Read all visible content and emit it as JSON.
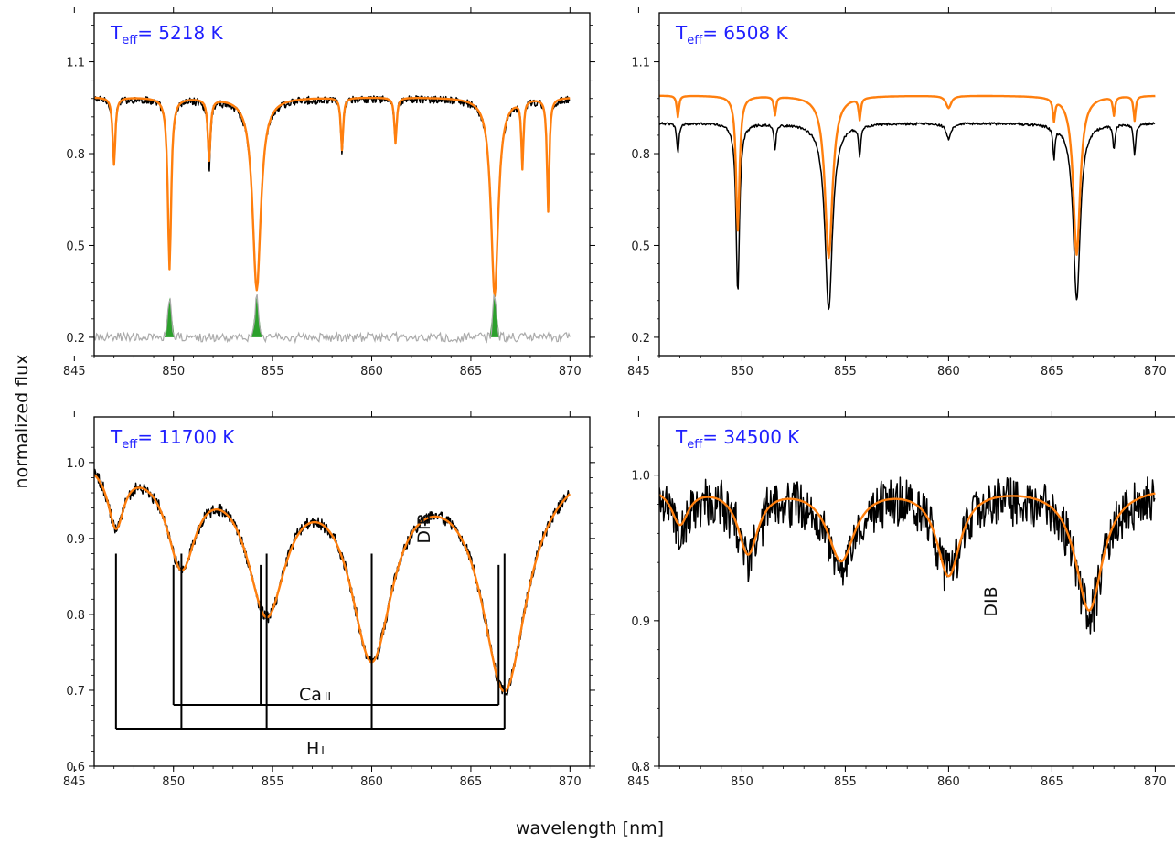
{
  "figure": {
    "xlabel": "wavelength [nm]",
    "ylabel": "normalized flux"
  },
  "colors": {
    "observed": "#000000",
    "model": "#ff7f0e",
    "residual": "#aaaaaa",
    "residual_fill": "#2ca02c",
    "teff_text": "#1f1fff"
  },
  "chart_data": [
    {
      "type": "line",
      "teff_label": "T",
      "teff_sub": "eff",
      "teff_value": "= 5218 K",
      "xlim": [
        846,
        871
      ],
      "ylim": [
        0.14,
        1.26
      ],
      "y_scale": "custom-ticks",
      "xticks": [
        845,
        850,
        855,
        860,
        865,
        870
      ],
      "yticks": [
        0.2,
        0.5,
        0.8,
        1.1
      ],
      "ytick_labels": [
        "0.2",
        "0.5",
        "0.8",
        "1.1"
      ],
      "series": [
        {
          "role": "observed",
          "continuum": 0.98,
          "noise": 0.012,
          "lines": [
            [
              847.0,
              0.2,
              0.08
            ],
            [
              849.8,
              0.55,
              0.1
            ],
            [
              851.8,
              0.22,
              0.08
            ],
            [
              854.2,
              0.62,
              0.25
            ],
            [
              858.5,
              0.18,
              0.07
            ],
            [
              861.2,
              0.15,
              0.07
            ],
            [
              866.2,
              0.64,
              0.22
            ],
            [
              867.6,
              0.22,
              0.06
            ],
            [
              868.9,
              0.36,
              0.07
            ]
          ]
        },
        {
          "role": "model",
          "continuum": 0.985,
          "lines": [
            [
              847.0,
              0.22,
              0.08
            ],
            [
              849.8,
              0.56,
              0.1
            ],
            [
              851.8,
              0.2,
              0.08
            ],
            [
              854.2,
              0.63,
              0.25
            ],
            [
              858.5,
              0.17,
              0.07
            ],
            [
              861.2,
              0.15,
              0.07
            ],
            [
              866.2,
              0.65,
              0.22
            ],
            [
              867.6,
              0.22,
              0.06
            ],
            [
              868.9,
              0.37,
              0.07
            ]
          ]
        },
        {
          "role": "residual",
          "level": 0.2,
          "noise": 0.015,
          "spikes": [
            [
              849.8,
              0.33
            ],
            [
              854.2,
              0.33
            ],
            [
              866.2,
              0.34
            ]
          ]
        }
      ],
      "grid": false
    },
    {
      "type": "line",
      "teff_label": "T",
      "teff_sub": "eff",
      "teff_value": "= 6508 K",
      "xlim": [
        846,
        871
      ],
      "ylim": [
        0.14,
        1.26
      ],
      "xticks": [
        845,
        850,
        855,
        860,
        865,
        870
      ],
      "yticks": [
        0.2,
        0.5,
        0.8,
        1.1
      ],
      "ytick_labels": [
        "0.2",
        "0.5",
        "0.8",
        "1.1"
      ],
      "series": [
        {
          "role": "observed",
          "continuum": 0.9,
          "noise": 0.004,
          "lines": [
            [
              846.9,
              0.1,
              0.06
            ],
            [
              849.8,
              0.55,
              0.1
            ],
            [
              851.6,
              0.08,
              0.06
            ],
            [
              854.2,
              0.61,
              0.22
            ],
            [
              855.7,
              0.1,
              0.06
            ],
            [
              860.0,
              0.05,
              0.15
            ],
            [
              865.1,
              0.1,
              0.06
            ],
            [
              866.2,
              0.58,
              0.2
            ],
            [
              868.0,
              0.08,
              0.06
            ],
            [
              869.0,
              0.1,
              0.06
            ]
          ]
        },
        {
          "role": "model",
          "continuum": 0.99,
          "lines": [
            [
              846.9,
              0.07,
              0.06
            ],
            [
              849.8,
              0.44,
              0.1
            ],
            [
              851.6,
              0.06,
              0.06
            ],
            [
              854.2,
              0.53,
              0.22
            ],
            [
              855.7,
              0.07,
              0.06
            ],
            [
              860.0,
              0.04,
              0.15
            ],
            [
              865.1,
              0.07,
              0.06
            ],
            [
              866.2,
              0.52,
              0.2
            ],
            [
              868.0,
              0.06,
              0.06
            ],
            [
              869.0,
              0.08,
              0.06
            ]
          ]
        }
      ],
      "grid": false
    },
    {
      "type": "line",
      "teff_label": "T",
      "teff_sub": "eff",
      "teff_value": "= 11700 K",
      "xlim": [
        846,
        871
      ],
      "ylim": [
        0.6,
        1.06
      ],
      "xticks": [
        845,
        850,
        855,
        860,
        865,
        870
      ],
      "yticks": [
        0.6,
        0.7,
        0.8,
        0.9,
        1.0
      ],
      "ytick_labels": [
        "0.6",
        "0.7",
        "0.8",
        "0.9",
        "1.0"
      ],
      "series": [
        {
          "role": "observed",
          "continuum": 1.01,
          "noise": 0.008,
          "lines": [
            [
              847.1,
              0.08,
              0.5
            ],
            [
              850.4,
              0.13,
              0.9
            ],
            [
              854.7,
              0.19,
              1.2
            ],
            [
              860.0,
              0.25,
              1.3
            ],
            [
              866.7,
              0.3,
              1.4
            ]
          ]
        },
        {
          "role": "model",
          "continuum": 1.01,
          "lines": [
            [
              847.1,
              0.08,
              0.5
            ],
            [
              850.4,
              0.13,
              0.9
            ],
            [
              854.7,
              0.19,
              1.2
            ],
            [
              860.0,
              0.25,
              1.3
            ],
            [
              866.7,
              0.3,
              1.4
            ]
          ]
        }
      ],
      "annotations": {
        "dib": "DIB",
        "ca_label": "Ca",
        "ca_sub": "II",
        "h_label": "H",
        "h_sub": "I",
        "ca_lines": [
          850.0,
          854.4,
          866.4
        ],
        "h_lines": [
          847.1,
          850.4,
          854.7,
          860.0,
          866.7
        ]
      },
      "grid": false
    },
    {
      "type": "line",
      "teff_label": "T",
      "teff_sub": "eff",
      "teff_value": "= 34500 K",
      "xlim": [
        846,
        871
      ],
      "ylim": [
        0.8,
        1.04
      ],
      "xticks": [
        845,
        850,
        855,
        860,
        865,
        870
      ],
      "yticks": [
        0.8,
        0.9,
        1.0
      ],
      "ytick_labels": [
        "0.8",
        "0.9",
        "1.0"
      ],
      "series": [
        {
          "role": "observed",
          "continuum": 0.99,
          "noise": 0.016,
          "lines": [
            [
              847.0,
              0.025,
              0.5
            ],
            [
              850.3,
              0.045,
              0.6
            ],
            [
              854.8,
              0.05,
              0.8
            ],
            [
              860.0,
              0.055,
              0.7
            ],
            [
              866.8,
              0.085,
              0.8
            ]
          ]
        },
        {
          "role": "model",
          "continuum": 0.993,
          "lines": [
            [
              847.0,
              0.025,
              0.5
            ],
            [
              850.3,
              0.045,
              0.6
            ],
            [
              854.8,
              0.05,
              0.8
            ],
            [
              860.0,
              0.06,
              0.7
            ],
            [
              866.8,
              0.085,
              0.8
            ]
          ]
        }
      ],
      "annotations": {
        "dib": "DIB"
      },
      "grid": false
    }
  ]
}
